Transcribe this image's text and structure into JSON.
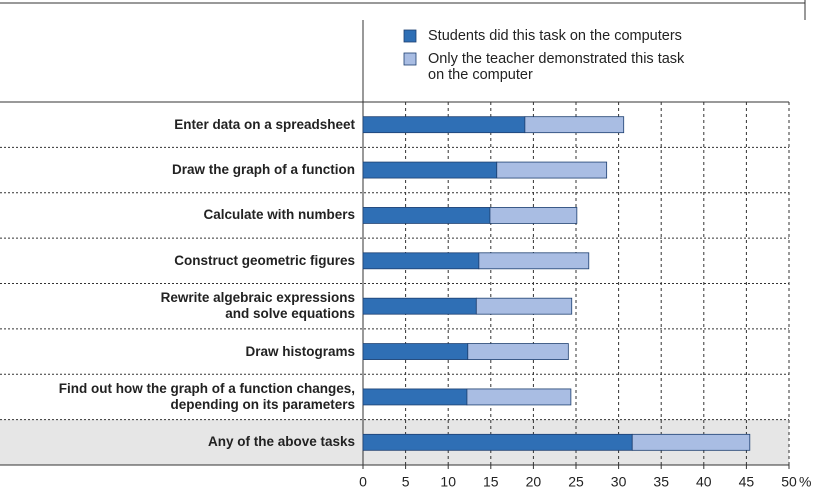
{
  "chart_data": {
    "type": "stacked_bar_horizontal",
    "categories": [
      "Enter data on a spreadsheet",
      "Draw the graph of a function",
      "Calculate with numbers",
      "Construct geometric figures",
      "Rewrite algebraic expressions\nand solve equations",
      "Draw histograms",
      "Find out how the graph of a function changes,\ndepending on its parameters",
      "Any of the above tasks"
    ],
    "series": [
      {
        "name": "Students did this task on the computers",
        "color": "#2f6fb5",
        "values": [
          19.0,
          15.7,
          14.9,
          13.6,
          13.3,
          12.3,
          12.2,
          31.6
        ]
      },
      {
        "name": "Only the teacher demonstrated this task\non the computer",
        "color": "#a9bde3",
        "values": [
          11.6,
          12.9,
          10.2,
          12.9,
          11.2,
          11.8,
          12.2,
          13.8
        ]
      }
    ],
    "xlim": [
      0,
      50
    ],
    "xticks": [
      0,
      5,
      10,
      15,
      20,
      25,
      30,
      35,
      40,
      45,
      50
    ],
    "x_unit": "%",
    "grid": true
  }
}
